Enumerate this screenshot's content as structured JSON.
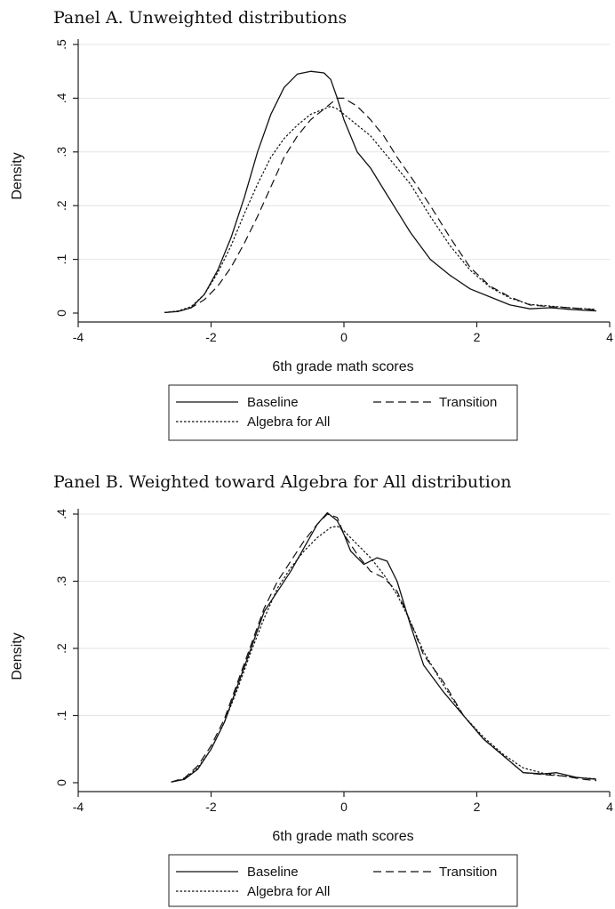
{
  "chart_data": [
    {
      "type": "line",
      "title": "Panel A. Unweighted distributions",
      "xlabel": "6th grade math scores",
      "ylabel": "Density",
      "xlim": [
        -4,
        4
      ],
      "ylim": [
        0,
        0.5
      ],
      "xticks": [
        -4,
        -2,
        0,
        2,
        4
      ],
      "xtick_labels": [
        "-4",
        "-2",
        "0",
        "2",
        "4"
      ],
      "yticks": [
        0,
        0.1,
        0.2,
        0.3,
        0.4,
        0.5
      ],
      "ytick_labels": [
        "0",
        ".1",
        ".2",
        ".3",
        ".4",
        ".5"
      ],
      "grid": "horizontal",
      "legend": "bottom",
      "series": [
        {
          "name": "Baseline",
          "style": "solid",
          "x": [
            -2.7,
            -2.5,
            -2.3,
            -2.1,
            -1.9,
            -1.7,
            -1.5,
            -1.3,
            -1.1,
            -0.9,
            -0.7,
            -0.5,
            -0.3,
            -0.2,
            -0.1,
            0.0,
            0.2,
            0.4,
            0.6,
            0.8,
            1.0,
            1.3,
            1.6,
            1.9,
            2.2,
            2.5,
            2.8,
            3.1,
            3.4,
            3.8
          ],
          "y": [
            0.001,
            0.003,
            0.01,
            0.035,
            0.08,
            0.14,
            0.215,
            0.3,
            0.37,
            0.42,
            0.445,
            0.45,
            0.447,
            0.435,
            0.4,
            0.36,
            0.3,
            0.27,
            0.23,
            0.19,
            0.15,
            0.1,
            0.07,
            0.045,
            0.03,
            0.015,
            0.008,
            0.01,
            0.007,
            0.004
          ]
        },
        {
          "name": "Transition",
          "style": "dashed",
          "x": [
            -2.7,
            -2.5,
            -2.3,
            -2.1,
            -1.9,
            -1.7,
            -1.5,
            -1.3,
            -1.1,
            -0.9,
            -0.7,
            -0.5,
            -0.3,
            -0.1,
            0.0,
            0.2,
            0.4,
            0.6,
            0.8,
            1.0,
            1.3,
            1.6,
            1.9,
            2.2,
            2.5,
            2.8,
            3.1,
            3.4,
            3.8
          ],
          "y": [
            0.001,
            0.003,
            0.01,
            0.025,
            0.05,
            0.085,
            0.13,
            0.18,
            0.235,
            0.29,
            0.33,
            0.36,
            0.38,
            0.4,
            0.4,
            0.385,
            0.36,
            0.33,
            0.29,
            0.255,
            0.2,
            0.14,
            0.085,
            0.05,
            0.03,
            0.015,
            0.012,
            0.01,
            0.006
          ]
        },
        {
          "name": "Algebra for All",
          "style": "dotted",
          "x": [
            -2.7,
            -2.5,
            -2.3,
            -2.1,
            -1.9,
            -1.7,
            -1.5,
            -1.3,
            -1.1,
            -0.9,
            -0.7,
            -0.5,
            -0.3,
            -0.2,
            -0.1,
            0.0,
            0.2,
            0.4,
            0.6,
            0.8,
            1.0,
            1.3,
            1.6,
            1.9,
            2.2,
            2.5,
            2.8,
            3.1,
            3.4,
            3.8
          ],
          "y": [
            0.001,
            0.004,
            0.012,
            0.035,
            0.075,
            0.125,
            0.185,
            0.24,
            0.29,
            0.325,
            0.35,
            0.37,
            0.38,
            0.385,
            0.38,
            0.37,
            0.35,
            0.33,
            0.3,
            0.27,
            0.24,
            0.18,
            0.125,
            0.08,
            0.048,
            0.028,
            0.016,
            0.013,
            0.01,
            0.007
          ]
        }
      ]
    },
    {
      "type": "line",
      "title": "Panel B. Weighted toward Algebra for All distribution",
      "xlabel": "6th grade math scores",
      "ylabel": "Density",
      "xlim": [
        -4,
        4
      ],
      "ylim": [
        0,
        0.4
      ],
      "xticks": [
        -4,
        -2,
        0,
        2,
        4
      ],
      "xtick_labels": [
        "-4",
        "-2",
        "0",
        "2",
        "4"
      ],
      "yticks": [
        0,
        0.1,
        0.2,
        0.3,
        0.4
      ],
      "ytick_labels": [
        "0",
        ".1",
        ".2",
        ".3",
        ".4"
      ],
      "grid": "horizontal",
      "legend": "bottom",
      "series": [
        {
          "name": "Baseline",
          "style": "solid",
          "x": [
            -2.6,
            -2.4,
            -2.2,
            -2.0,
            -1.8,
            -1.6,
            -1.4,
            -1.2,
            -1.0,
            -0.8,
            -0.6,
            -0.4,
            -0.25,
            -0.1,
            0.0,
            0.1,
            0.3,
            0.5,
            0.65,
            0.8,
            1.0,
            1.2,
            1.5,
            1.8,
            2.1,
            2.4,
            2.7,
            3.0,
            3.2,
            3.5,
            3.8
          ],
          "y": [
            0.001,
            0.005,
            0.02,
            0.05,
            0.09,
            0.145,
            0.2,
            0.255,
            0.285,
            0.315,
            0.35,
            0.385,
            0.402,
            0.39,
            0.37,
            0.345,
            0.325,
            0.335,
            0.33,
            0.3,
            0.235,
            0.175,
            0.135,
            0.1,
            0.065,
            0.04,
            0.015,
            0.013,
            0.015,
            0.008,
            0.005
          ]
        },
        {
          "name": "Transition",
          "style": "dashed",
          "x": [
            -2.6,
            -2.4,
            -2.2,
            -2.0,
            -1.8,
            -1.6,
            -1.4,
            -1.2,
            -1.0,
            -0.8,
            -0.6,
            -0.4,
            -0.25,
            -0.1,
            0.0,
            0.2,
            0.4,
            0.6,
            0.8,
            1.0,
            1.2,
            1.5,
            1.8,
            2.1,
            2.4,
            2.7,
            3.0,
            3.3,
            3.6,
            3.8
          ],
          "y": [
            0.001,
            0.007,
            0.025,
            0.055,
            0.095,
            0.15,
            0.205,
            0.26,
            0.3,
            0.33,
            0.36,
            0.385,
            0.4,
            0.395,
            0.37,
            0.34,
            0.315,
            0.305,
            0.285,
            0.24,
            0.19,
            0.15,
            0.1,
            0.065,
            0.04,
            0.015,
            0.012,
            0.01,
            0.005,
            0.003
          ]
        },
        {
          "name": "Algebra for All",
          "style": "dotted",
          "x": [
            -2.6,
            -2.4,
            -2.2,
            -2.0,
            -1.8,
            -1.6,
            -1.4,
            -1.2,
            -1.0,
            -0.8,
            -0.6,
            -0.4,
            -0.2,
            -0.1,
            0.0,
            0.2,
            0.4,
            0.6,
            0.8,
            1.0,
            1.2,
            1.5,
            1.8,
            2.1,
            2.4,
            2.7,
            3.0,
            3.3,
            3.6,
            3.8
          ],
          "y": [
            0.001,
            0.006,
            0.022,
            0.05,
            0.09,
            0.14,
            0.195,
            0.245,
            0.29,
            0.32,
            0.345,
            0.365,
            0.38,
            0.382,
            0.375,
            0.355,
            0.335,
            0.31,
            0.28,
            0.24,
            0.195,
            0.145,
            0.1,
            0.068,
            0.042,
            0.022,
            0.014,
            0.01,
            0.007,
            0.006
          ]
        }
      ]
    }
  ]
}
